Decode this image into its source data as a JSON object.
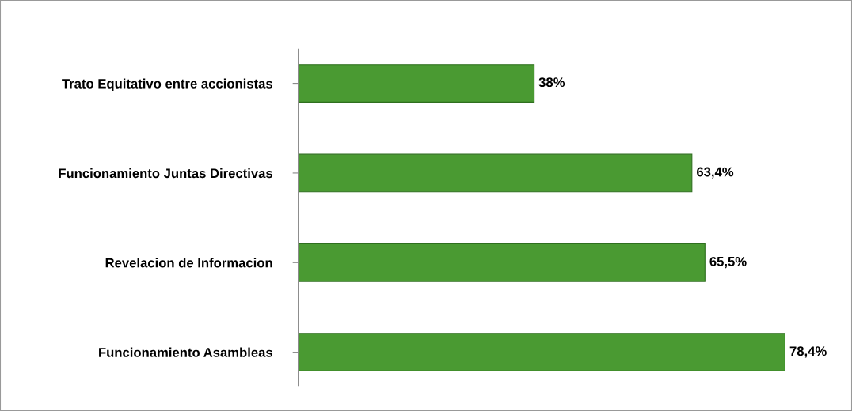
{
  "chart_data": {
    "type": "bar",
    "orientation": "horizontal",
    "categories": [
      "Trato Equitativo entre accionistas",
      "Funcionamiento Juntas Directivas",
      "Revelacion de Informacion",
      "Funcionamiento Asambleas"
    ],
    "values": [
      38,
      63.4,
      65.5,
      78.4
    ],
    "value_labels": [
      "38%",
      "63,4%",
      "65,5%",
      "78,4%"
    ],
    "color": "#4a9a32",
    "grid": false,
    "legend": false
  }
}
